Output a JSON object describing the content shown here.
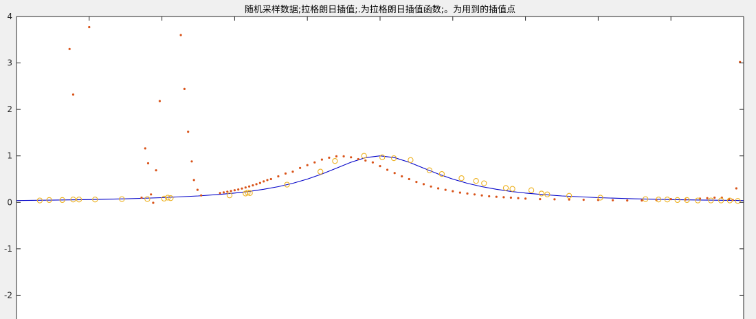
{
  "chart_data": {
    "type": "line",
    "title": "随机采样数据;拉格朗日插值;.为拉格朗日插值函数;。为用到的插值点",
    "xlabel": "",
    "ylabel": "",
    "xlim": [
      -5,
      5
    ],
    "ylim": [
      -2.6,
      4
    ],
    "yticks": [
      -2,
      -1,
      0,
      1,
      2,
      3,
      4
    ],
    "yticklabels": [
      "-2",
      "-1",
      "0",
      "1",
      "2",
      "3",
      "4"
    ],
    "xticks": [
      -4,
      -3,
      -2,
      -1,
      0,
      1,
      2,
      3,
      4
    ],
    "grid": false,
    "legend": "none",
    "colors": {
      "curve": "#0000c8",
      "dots": "#d95319",
      "circles": "#edb120",
      "axes": "#262626",
      "plot_bg": "#ffffff",
      "figure_bg": "#f0f0f0"
    },
    "series": [
      {
        "kind": "function-line",
        "function": "1/(1+x^2)",
        "x": [
          -5.0,
          -4.5,
          -4.0,
          -3.5,
          -3.0,
          -2.5,
          -2.2,
          -2.0,
          -1.8,
          -1.6,
          -1.4,
          -1.2,
          -1.0,
          -0.8,
          -0.6,
          -0.4,
          -0.2,
          0.0,
          0.2,
          0.4,
          0.6,
          0.8,
          1.0,
          1.2,
          1.4,
          1.6,
          1.8,
          2.0,
          2.2,
          2.5,
          3.0,
          3.5,
          4.0,
          4.5,
          5.0
        ],
        "y": [
          0.0385,
          0.0471,
          0.0588,
          0.0755,
          0.1,
          0.1379,
          0.1712,
          0.2,
          0.2358,
          0.2809,
          0.3378,
          0.4098,
          0.5,
          0.6098,
          0.7353,
          0.8621,
          0.9615,
          1.0,
          0.9615,
          0.8621,
          0.7353,
          0.6098,
          0.5,
          0.4098,
          0.3378,
          0.2809,
          0.2358,
          0.2,
          0.1712,
          0.1379,
          0.1,
          0.0755,
          0.0588,
          0.0471,
          0.0385
        ]
      },
      {
        "kind": "interpolant-dots",
        "x": [
          -4.27,
          -4.22,
          -4.0,
          -3.28,
          -3.23,
          -3.19,
          -3.15,
          -3.12,
          -3.08,
          -3.03,
          -2.74,
          -2.69,
          -2.64,
          -2.59,
          -2.56,
          -2.51,
          -2.46,
          -2.2,
          -2.15,
          -2.1,
          -2.05,
          -2.0,
          -1.95,
          -1.9,
          -1.85,
          -1.8,
          -1.75,
          -1.7,
          -1.65,
          -1.6,
          -1.55,
          -1.5,
          -1.4,
          -1.3,
          -1.2,
          -1.1,
          -1.0,
          -0.9,
          -0.8,
          -0.7,
          -0.6,
          -0.5,
          -0.4,
          -0.3,
          -0.2,
          -0.1,
          0.0,
          0.1,
          0.2,
          0.3,
          0.4,
          0.5,
          0.6,
          0.7,
          0.8,
          0.9,
          1.0,
          1.1,
          1.2,
          1.3,
          1.4,
          1.5,
          1.6,
          1.7,
          1.8,
          1.9,
          2.0,
          2.2,
          2.4,
          2.6,
          2.8,
          3.0,
          3.2,
          3.4,
          3.6,
          3.8,
          4.0,
          4.2,
          4.4,
          4.5,
          4.6,
          4.7,
          4.8,
          4.85,
          4.9,
          4.95
        ],
        "y": [
          3.3,
          2.32,
          3.77,
          0.1,
          1.16,
          0.84,
          0.17,
          -0.01,
          0.69,
          2.18,
          3.6,
          2.44,
          1.52,
          0.88,
          0.48,
          0.27,
          0.15,
          0.2,
          0.214,
          0.229,
          0.244,
          0.26,
          0.277,
          0.297,
          0.319,
          0.342,
          0.366,
          0.39,
          0.418,
          0.45,
          0.48,
          0.5,
          0.56,
          0.62,
          0.66,
          0.74,
          0.8,
          0.86,
          0.92,
          0.96,
          0.99,
          0.99,
          0.97,
          0.93,
          0.9,
          0.86,
          0.78,
          0.7,
          0.63,
          0.56,
          0.5,
          0.44,
          0.39,
          0.34,
          0.3,
          0.27,
          0.24,
          0.21,
          0.19,
          0.17,
          0.15,
          0.13,
          0.12,
          0.11,
          0.1,
          0.09,
          0.08,
          0.07,
          0.065,
          0.06,
          0.055,
          0.05,
          0.045,
          0.04,
          0.04,
          0.05,
          0.07,
          0.06,
          0.08,
          0.09,
          0.1,
          0.1,
          0.07,
          0.05,
          0.3,
          3.02
        ]
      },
      {
        "kind": "interpolation-points",
        "x": [
          -4.68,
          -4.55,
          -4.37,
          -4.22,
          -4.14,
          -3.92,
          -3.55,
          -3.2,
          -2.97,
          -2.92,
          -2.88,
          -2.07,
          -1.85,
          -1.82,
          -1.79,
          -1.28,
          -0.82,
          -0.62,
          -0.22,
          0.03,
          0.19,
          0.42,
          0.68,
          0.85,
          1.12,
          1.32,
          1.43,
          1.73,
          1.82,
          2.08,
          2.22,
          2.3,
          2.6,
          3.03,
          3.65,
          3.83,
          3.95,
          4.09,
          4.22,
          4.37,
          4.55,
          4.69,
          4.81,
          4.92
        ],
        "y": [
          0.04,
          0.05,
          0.05,
          0.06,
          0.06,
          0.06,
          0.07,
          0.07,
          0.08,
          0.1,
          0.09,
          0.15,
          0.19,
          0.21,
          0.2,
          0.38,
          0.66,
          0.89,
          1.0,
          0.97,
          0.95,
          0.91,
          0.69,
          0.61,
          0.52,
          0.46,
          0.41,
          0.31,
          0.29,
          0.26,
          0.19,
          0.17,
          0.14,
          0.1,
          0.07,
          0.06,
          0.06,
          0.05,
          0.05,
          0.04,
          0.04,
          0.04,
          0.04,
          0.03
        ]
      }
    ]
  }
}
